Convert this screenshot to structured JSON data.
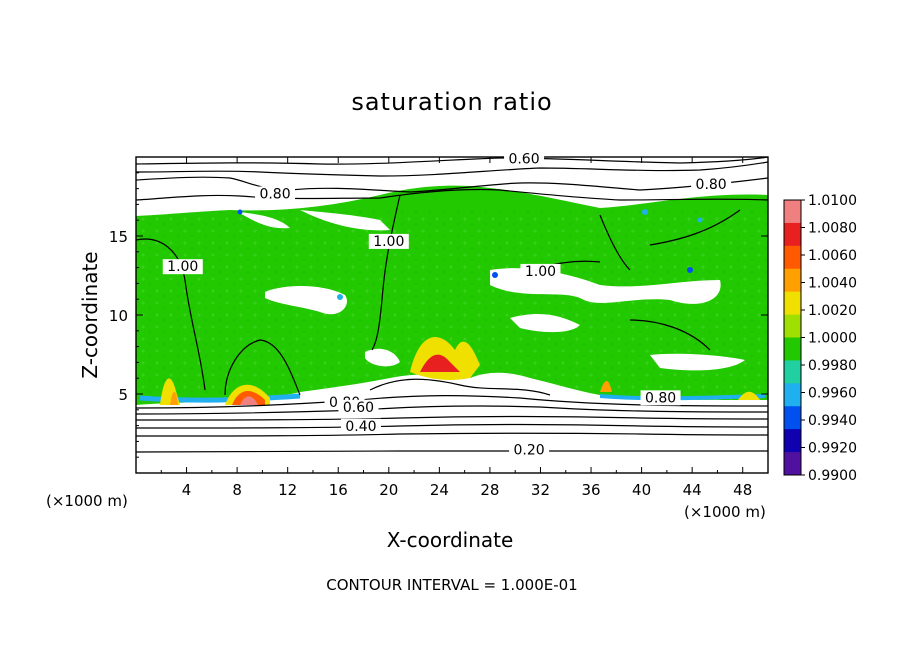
{
  "chart_data": {
    "type": "heatmap",
    "title": "saturation ratio",
    "xlabel": "X-coordinate",
    "ylabel": "Z-coordinate",
    "x_unit_label": "(×1000 m)",
    "y_unit_label": "(×1000 m)",
    "xlim": [
      0,
      50
    ],
    "ylim": [
      0,
      20
    ],
    "x_ticks": [
      4,
      8,
      12,
      16,
      20,
      24,
      28,
      32,
      36,
      40,
      44,
      48
    ],
    "y_ticks": [
      5,
      10,
      15
    ],
    "footer": "CONTOUR INTERVAL = 1.000E-01",
    "colorbar": {
      "ticks": [
        "1.0100",
        "1.0080",
        "1.0060",
        "1.0040",
        "1.0020",
        "1.0000",
        "0.9980",
        "0.9960",
        "0.9940",
        "0.9920",
        "0.9900"
      ],
      "colors": [
        "#f08080",
        "#e82020",
        "#ff5a00",
        "#ffa000",
        "#f0e000",
        "#a0e000",
        "#22c800",
        "#20d0a0",
        "#20b0f0",
        "#0050f0",
        "#1000b0",
        "#5010a0"
      ]
    },
    "contour_labels": [
      {
        "text": "0.60",
        "x": 30.7,
        "y": 19.7
      },
      {
        "text": "0.80",
        "x": 11.0,
        "y": 17.5
      },
      {
        "text": "0.80",
        "x": 45.5,
        "y": 18.1
      },
      {
        "text": "1.00",
        "x": 3.7,
        "y": 12.9
      },
      {
        "text": "1.00",
        "x": 20.0,
        "y": 14.5
      },
      {
        "text": "1.00",
        "x": 32.0,
        "y": 12.6
      },
      {
        "text": "0.80",
        "x": 16.5,
        "y": 4.3
      },
      {
        "text": "0.60",
        "x": 17.6,
        "y": 4.0
      },
      {
        "text": "0.40",
        "x": 17.8,
        "y": 2.8
      },
      {
        "text": "0.80",
        "x": 41.5,
        "y": 4.6
      },
      {
        "text": "0.20",
        "x": 31.1,
        "y": 1.3
      }
    ]
  }
}
